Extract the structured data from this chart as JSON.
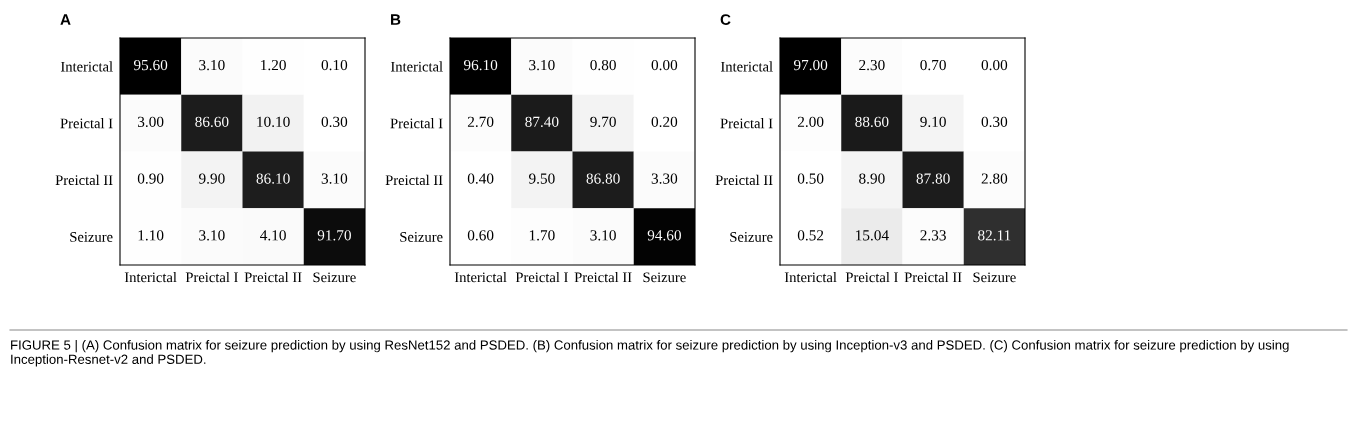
{
  "chart_data": [
    {
      "type": "heatmap",
      "title": "A",
      "categories": [
        "Interictal",
        "Preictal I",
        "Preictal II",
        "Seizure"
      ],
      "y_categories": [
        "Interictal",
        "Preictal I",
        "Preictal II",
        "Seizure"
      ],
      "cells": [
        [
          95.6,
          3.1,
          1.2,
          0.1
        ],
        [
          3.0,
          86.6,
          10.1,
          0.3
        ],
        [
          0.9,
          9.9,
          86.1,
          3.1
        ],
        [
          1.1,
          3.1,
          4.1,
          91.7
        ]
      ],
      "cell_labels": [
        [
          "95.60",
          "3.10",
          "1.20",
          "0.10"
        ],
        [
          "3.00",
          "86.60",
          "10.10",
          "0.30"
        ],
        [
          "0.90",
          "9.90",
          "86.10",
          "3.10"
        ],
        [
          "1.10",
          "3.10",
          "4.10",
          "91.70"
        ]
      ]
    },
    {
      "type": "heatmap",
      "title": "B",
      "categories": [
        "Interictal",
        "Preictal I",
        "Preictal II",
        "Seizure"
      ],
      "y_categories": [
        "Interictal",
        "Preictal I",
        "Preictal II",
        "Seizure"
      ],
      "cells": [
        [
          96.1,
          3.1,
          0.8,
          0.0
        ],
        [
          2.7,
          87.4,
          9.7,
          0.2
        ],
        [
          0.4,
          9.5,
          86.8,
          3.3
        ],
        [
          0.6,
          1.7,
          3.1,
          94.6
        ]
      ],
      "cell_labels": [
        [
          "96.10",
          "3.10",
          "0.80",
          "0.00"
        ],
        [
          "2.70",
          "87.40",
          "9.70",
          "0.20"
        ],
        [
          "0.40",
          "9.50",
          "86.80",
          "3.30"
        ],
        [
          "0.60",
          "1.70",
          "3.10",
          "94.60"
        ]
      ]
    },
    {
      "type": "heatmap",
      "title": "C",
      "categories": [
        "Interictal",
        "Preictal I",
        "Preictal II",
        "Seizure"
      ],
      "y_categories": [
        "Interictal",
        "Preictal I",
        "Preictal II",
        "Seizure"
      ],
      "cells": [
        [
          97.0,
          2.3,
          0.7,
          0.0
        ],
        [
          2.0,
          88.6,
          9.1,
          0.3
        ],
        [
          0.5,
          8.9,
          87.8,
          2.8
        ],
        [
          0.52,
          15.04,
          2.33,
          82.11
        ]
      ],
      "cell_labels": [
        [
          "97.00",
          "2.30",
          "0.70",
          "0.00"
        ],
        [
          "2.00",
          "88.60",
          "9.10",
          "0.30"
        ],
        [
          "0.50",
          "8.90",
          "87.80",
          "2.80"
        ],
        [
          "0.52",
          "15.04",
          "2.33",
          "82.11"
        ]
      ],
      "annotations": [
        "FIGURE 5 | (A) Confusion matrix for seizure prediction by using ResNet152 and PSDED. (B) Confusion matrix for seizure prediction by using Inception-v3 and PSDED. (C) Confusion matrix for seizure prediction by using Inception-Resnet-v2 and PSDED."
      ]
    }
  ]
}
